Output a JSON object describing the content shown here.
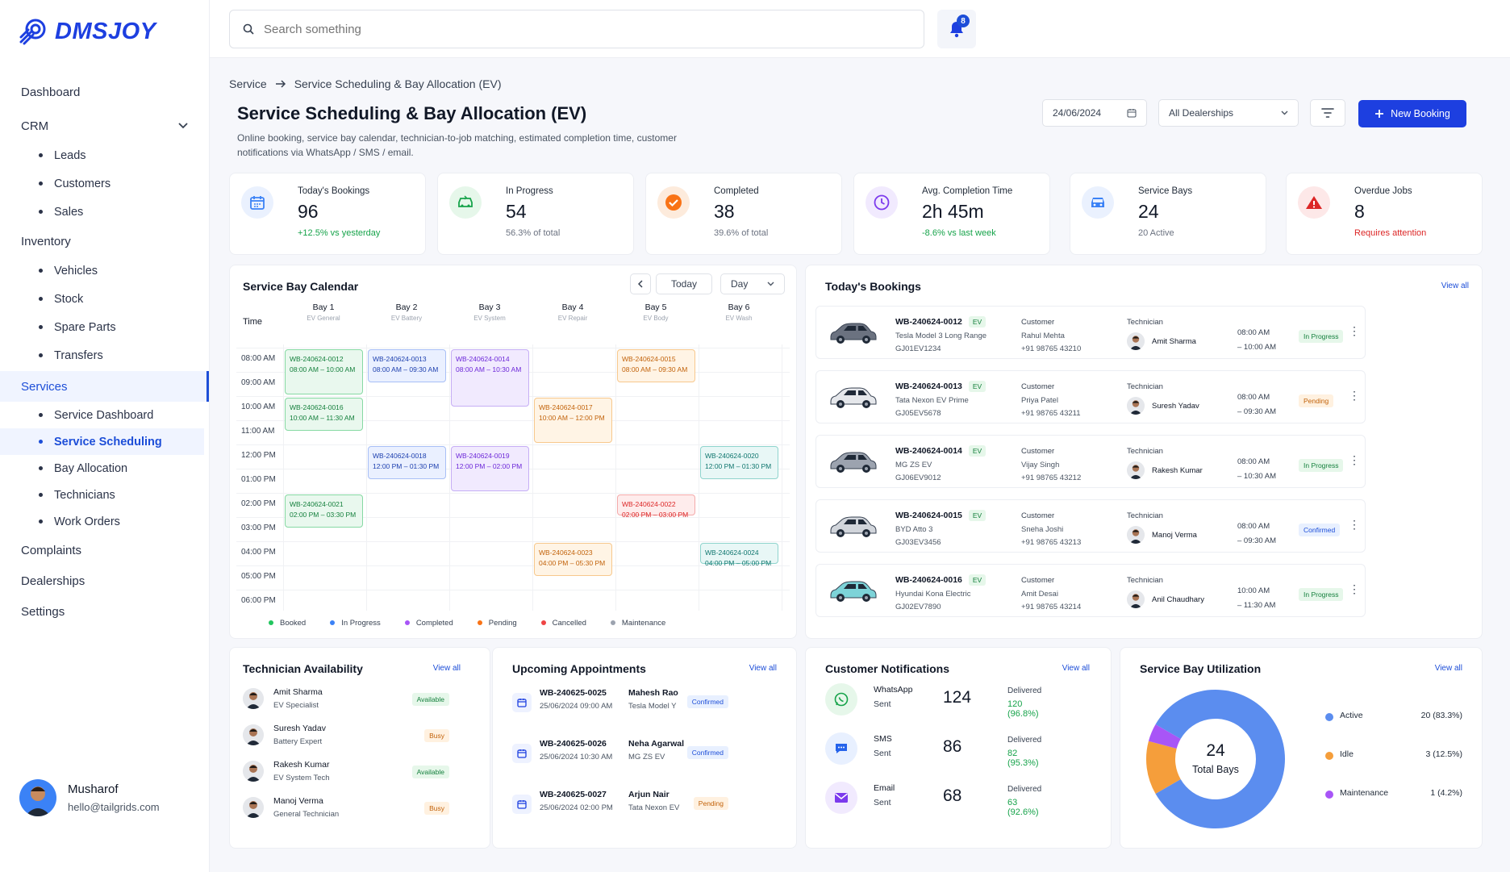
{
  "app": {
    "brand": "DMSJOY"
  },
  "sidebar": {
    "items": [
      {
        "label": "Dashboard"
      },
      {
        "label": "CRM"
      },
      {
        "label": "Leads"
      },
      {
        "label": "Customers"
      },
      {
        "label": "Sales"
      },
      {
        "label": "Inventory"
      },
      {
        "label": "Vehicles"
      },
      {
        "label": "Stock"
      },
      {
        "label": "Spare Parts"
      },
      {
        "label": "Transfers"
      },
      {
        "label": "Services"
      },
      {
        "label": "Service Dashboard"
      },
      {
        "label": "Service Scheduling"
      },
      {
        "label": "Bay Allocation"
      },
      {
        "label": "Technicians"
      },
      {
        "label": "Work Orders"
      },
      {
        "label": "Complaints"
      },
      {
        "label": "Dealerships"
      },
      {
        "label": "Settings"
      }
    ],
    "user": {
      "name": "Musharof",
      "email": "hello@tailgrids.com"
    }
  },
  "topbar": {
    "search_placeholder": "Search something",
    "notif_count": "8"
  },
  "breadcrumb": {
    "parent": "Service",
    "current": "Service Scheduling & Bay Allocation (EV)"
  },
  "page": {
    "title": "Service Scheduling & Bay Allocation (EV)",
    "description": "Online booking, service bay calendar, technician-to-job matching, estimated completion time, customer notifications via WhatsApp / SMS / email."
  },
  "controls": {
    "date": "24/06/2024",
    "dealership": "All Dealerships",
    "new_booking": "New Booking"
  },
  "stats": [
    {
      "label": "Today's Bookings",
      "value": "96",
      "sub": "+12.5% vs yesterday",
      "icon": "calendar-icon",
      "color": "#3b82f6"
    },
    {
      "label": "In Progress",
      "value": "54",
      "sub": "56.3% of total",
      "icon": "car-wrench-icon",
      "color": "#16a34a"
    },
    {
      "label": "Completed",
      "value": "38",
      "sub": "39.6% of total",
      "icon": "check-icon",
      "color": "#f97316"
    },
    {
      "label": "Avg. Completion Time",
      "value": "2h 45m",
      "sub": "-8.6% vs last week",
      "icon": "clock-icon",
      "color": "#7c3aed"
    },
    {
      "label": "Service Bays",
      "value": "24",
      "sub": "20 Active",
      "icon": "car-icon",
      "color": "#3b82f6"
    },
    {
      "label": "Overdue Jobs",
      "value": "8",
      "sub": "Requires attention",
      "icon": "warning-icon",
      "color": "#dc2626"
    }
  ],
  "calendar": {
    "title": "Service Bay Calendar",
    "today": "Today",
    "view": "Day",
    "time_header": "Time",
    "times": [
      "08:00 AM",
      "09:00 AM",
      "10:00 AM",
      "11:00 AM",
      "12:00 PM",
      "01:00 PM",
      "02:00 PM",
      "03:00 PM",
      "04:00 PM",
      "05:00 PM",
      "06:00 PM"
    ],
    "bays": [
      {
        "name": "Bay 1",
        "type": "EV General"
      },
      {
        "name": "Bay 2",
        "type": "EV Battery"
      },
      {
        "name": "Bay 3",
        "type": "EV System"
      },
      {
        "name": "Bay 4",
        "type": "EV Repair"
      },
      {
        "name": "Bay 5",
        "type": "EV Body"
      },
      {
        "name": "Bay 6",
        "type": "EV Wash"
      }
    ],
    "events": [
      {
        "id": "WB-240624-0012",
        "time": "08:00 AM – 10:00 AM",
        "bay": 1,
        "start": 8,
        "end": 10,
        "status": "booked"
      },
      {
        "id": "WB-240624-0013",
        "time": "08:00 AM – 09:30 AM",
        "bay": 2,
        "start": 8,
        "end": 9.5,
        "status": "inprogress"
      },
      {
        "id": "WB-240624-0014",
        "time": "08:00 AM – 10:30 AM",
        "bay": 3,
        "start": 8,
        "end": 10.5,
        "status": "completed"
      },
      {
        "id": "WB-240624-0015",
        "time": "08:00 AM – 09:30 AM",
        "bay": 5,
        "start": 8,
        "end": 9.5,
        "status": "pending"
      },
      {
        "id": "WB-240624-0016",
        "time": "10:00 AM – 11:30 AM",
        "bay": 1,
        "start": 10,
        "end": 11.5,
        "status": "booked"
      },
      {
        "id": "WB-240624-0017",
        "time": "10:00 AM – 12:00 PM",
        "bay": 4,
        "start": 10,
        "end": 12,
        "status": "pending"
      },
      {
        "id": "WB-240624-0018",
        "time": "12:00 PM – 01:30 PM",
        "bay": 2,
        "start": 12,
        "end": 13.5,
        "status": "inprogress"
      },
      {
        "id": "WB-240624-0019",
        "time": "12:00 PM – 02:00 PM",
        "bay": 3,
        "start": 12,
        "end": 14,
        "status": "completed"
      },
      {
        "id": "WB-240624-0020",
        "time": "12:00 PM – 01:30 PM",
        "bay": 6,
        "start": 12,
        "end": 13.5,
        "status": "maintenance"
      },
      {
        "id": "WB-240624-0021",
        "time": "02:00 PM – 03:30 PM",
        "bay": 1,
        "start": 14,
        "end": 15.5,
        "status": "booked"
      },
      {
        "id": "WB-240624-0022",
        "time": "02:00 PM – 03:00 PM",
        "bay": 5,
        "start": 14,
        "end": 15,
        "status": "cancelled"
      },
      {
        "id": "WB-240624-0023",
        "time": "04:00 PM – 05:30 PM",
        "bay": 4,
        "start": 16,
        "end": 17.5,
        "status": "pending"
      },
      {
        "id": "WB-240624-0024",
        "time": "04:00 PM – 05:00 PM",
        "bay": 6,
        "start": 16,
        "end": 17,
        "status": "maintenance"
      }
    ],
    "legend": [
      {
        "label": "Booked",
        "color": "#22c55e"
      },
      {
        "label": "In Progress",
        "color": "#3b82f6"
      },
      {
        "label": "Completed",
        "color": "#a855f7"
      },
      {
        "label": "Pending",
        "color": "#f97316"
      },
      {
        "label": "Cancelled",
        "color": "#ef4444"
      },
      {
        "label": "Maintenance",
        "color": "#9ca3af"
      }
    ]
  },
  "bookings": {
    "title": "Today's Bookings",
    "view_all": "View all",
    "ev": "EV",
    "customer_label": "Customer",
    "technician_label": "Technician",
    "rows": [
      {
        "id": "WB-240624-0012",
        "model": "Tesla Model 3 Long Range",
        "plate": "GJ01EV1234",
        "customer": "Rahul Mehta",
        "phone": "+91 98765 43210",
        "tech": "Amit Sharma",
        "t1": "08:00 AM",
        "t2": "– 10:00 AM",
        "status": "In Progress",
        "car_color": "#6b7280"
      },
      {
        "id": "WB-240624-0013",
        "model": "Tata Nexon EV Prime",
        "plate": "GJ05EV5678",
        "customer": "Priya Patel",
        "phone": "+91 98765 43211",
        "tech": "Suresh Yadav",
        "t1": "08:00 AM",
        "t2": "– 09:30 AM",
        "status": "Pending",
        "car_color": "#e5e7eb"
      },
      {
        "id": "WB-240624-0014",
        "model": "MG ZS EV",
        "plate": "GJ06EV9012",
        "customer": "Vijay Singh",
        "phone": "+91 98765 43212",
        "tech": "Rakesh Kumar",
        "t1": "08:00 AM",
        "t2": "– 10:30 AM",
        "status": "In Progress",
        "car_color": "#9ca3af"
      },
      {
        "id": "WB-240624-0015",
        "model": "BYD Atto 3",
        "plate": "GJ03EV3456",
        "customer": "Sneha Joshi",
        "phone": "+91 98765 43213",
        "tech": "Manoj Verma",
        "t1": "08:00 AM",
        "t2": "– 09:30 AM",
        "status": "Confirmed",
        "car_color": "#d1d5db"
      },
      {
        "id": "WB-240624-0016",
        "model": "Hyundai Kona Electric",
        "plate": "GJ02EV7890",
        "customer": "Amit Desai",
        "phone": "+91 98765 43214",
        "tech": "Anil Chaudhary",
        "t1": "10:00 AM",
        "t2": "– 11:30 AM",
        "status": "In Progress",
        "car_color": "#7dd3d8"
      }
    ]
  },
  "technicians": {
    "title": "Technician Availability",
    "view_all": "View all",
    "rows": [
      {
        "name": "Amit Sharma",
        "role": "EV Specialist",
        "status": "Available"
      },
      {
        "name": "Suresh Yadav",
        "role": "Battery Expert",
        "status": "Busy"
      },
      {
        "name": "Rakesh Kumar",
        "role": "EV System Tech",
        "status": "Available"
      },
      {
        "name": "Manoj Verma",
        "role": "General Technician",
        "status": "Busy"
      }
    ]
  },
  "appointments": {
    "title": "Upcoming Appointments",
    "view_all": "View all",
    "rows": [
      {
        "id": "WB-240625-0025",
        "datetime": "25/06/2024 09:00 AM",
        "name": "Mahesh Rao",
        "model": "Tesla Model Y",
        "status": "Confirmed"
      },
      {
        "id": "WB-240625-0026",
        "datetime": "25/06/2024 10:30 AM",
        "name": "Neha Agarwal",
        "model": "MG ZS EV",
        "status": "Confirmed"
      },
      {
        "id": "WB-240625-0027",
        "datetime": "25/06/2024 02:00 PM",
        "name": "Arjun Nair",
        "model": "Tata Nexon EV",
        "status": "Pending"
      }
    ]
  },
  "notifications": {
    "title": "Customer Notifications",
    "view_all": "View all",
    "delivered_label": "Delivered",
    "sent_label": "Sent",
    "rows": [
      {
        "channel": "WhatsApp",
        "count": "124",
        "delivered": "120 (96.8%)",
        "icon": "whatsapp-icon",
        "color": "#16a34a"
      },
      {
        "channel": "SMS",
        "count": "86",
        "delivered": "82 (95.3%)",
        "icon": "sms-icon",
        "color": "#2563eb"
      },
      {
        "channel": "Email",
        "count": "68",
        "delivered": "63 (92.6%)",
        "icon": "email-icon",
        "color": "#7c3aed"
      }
    ]
  },
  "utilization": {
    "title": "Service Bay Utilization",
    "view_all": "View all",
    "total": "24",
    "total_label": "Total Bays",
    "items": [
      {
        "label": "Active",
        "value": "20 (83.3%)",
        "count": 20,
        "color": "#5b8def"
      },
      {
        "label": "Idle",
        "value": "3 (12.5%)",
        "count": 3,
        "color": "#f59e3b"
      },
      {
        "label": "Maintenance",
        "value": "1 (4.2%)",
        "count": 1,
        "color": "#a855f7"
      }
    ]
  }
}
